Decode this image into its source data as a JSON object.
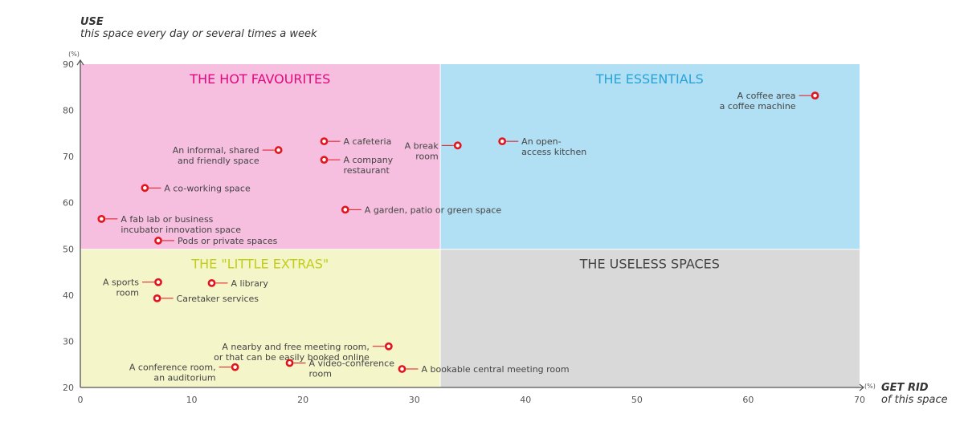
{
  "chart_data": {
    "type": "scatter",
    "ylabel_title": "USE",
    "ylabel_sub": "this space every day or several times a week",
    "xlabel_title": "GET RID",
    "xlabel_sub": "of this space",
    "x_unit": "(%)",
    "y_unit": "(%)",
    "xlim": [
      0,
      70
    ],
    "ylim": [
      20,
      90
    ],
    "x_ticks": [
      0,
      10,
      20,
      30,
      40,
      50,
      60,
      70
    ],
    "y_ticks": [
      20,
      30,
      40,
      50,
      60,
      70,
      80,
      90
    ],
    "grid": false,
    "quadrants": [
      {
        "title": "THE HOT FAVOURITES",
        "x": [
          0,
          32.3
        ],
        "y": [
          50,
          90
        ],
        "bg": "#f6bfdf",
        "color": "#e3087e"
      },
      {
        "title": "THE ESSENTIALS",
        "x": [
          32.3,
          70
        ],
        "y": [
          50,
          90
        ],
        "bg": "#b1dff3",
        "color": "#29a3d8"
      },
      {
        "title": "THE \"LITTLE EXTRAS\"",
        "x": [
          0,
          32.3
        ],
        "y": [
          20,
          50
        ],
        "bg": "#f4f5c9",
        "color": "#c2cd19"
      },
      {
        "title": "THE USELESS SPACES",
        "x": [
          32.3,
          70
        ],
        "y": [
          20,
          50
        ],
        "bg": "#d9d9d9",
        "color": "#444444"
      }
    ],
    "point_color": "#e3141b",
    "points": [
      {
        "x": 66.0,
        "y": 83.2,
        "label": [
          "A coffee area",
          "a coffee machine"
        ],
        "side": "left"
      },
      {
        "x": 37.9,
        "y": 73.3,
        "label": [
          "An open-",
          "access kitchen"
        ],
        "side": "right"
      },
      {
        "x": 33.9,
        "y": 72.4,
        "label": [
          "A break",
          "room"
        ],
        "side": "left"
      },
      {
        "x": 21.9,
        "y": 73.3,
        "label": [
          "A cafeteria"
        ],
        "side": "right"
      },
      {
        "x": 21.9,
        "y": 69.3,
        "label": [
          "A company",
          "restaurant"
        ],
        "side": "right"
      },
      {
        "x": 17.8,
        "y": 71.4,
        "label": [
          "An informal, shared",
          "and friendly space"
        ],
        "side": "left"
      },
      {
        "x": 5.8,
        "y": 63.2,
        "label": [
          "A co-working space"
        ],
        "side": "right"
      },
      {
        "x": 23.8,
        "y": 58.5,
        "label": [
          "A garden, patio or green space"
        ],
        "side": "right"
      },
      {
        "x": 1.9,
        "y": 56.5,
        "label": [
          "A fab lab or business",
          "incubator innovation space"
        ],
        "side": "right"
      },
      {
        "x": 7.0,
        "y": 51.8,
        "label": [
          "Pods or private spaces"
        ],
        "side": "right"
      },
      {
        "x": 7.0,
        "y": 42.8,
        "label": [
          "A sports",
          "room"
        ],
        "side": "left"
      },
      {
        "x": 11.8,
        "y": 42.6,
        "label": [
          "A library"
        ],
        "side": "right"
      },
      {
        "x": 6.9,
        "y": 39.3,
        "label": [
          "Caretaker services"
        ],
        "side": "right"
      },
      {
        "x": 27.7,
        "y": 28.9,
        "label": [
          "A nearby and free meeting room,",
          "or that can be easily booked online"
        ],
        "side": "left"
      },
      {
        "x": 13.9,
        "y": 24.4,
        "label": [
          "A conference room,",
          "an auditorium"
        ],
        "side": "left"
      },
      {
        "x": 18.8,
        "y": 25.3,
        "label": [
          "A video-conference",
          "room"
        ],
        "side": "right"
      },
      {
        "x": 28.9,
        "y": 24.0,
        "label": [
          "A bookable central meeting room"
        ],
        "side": "right"
      }
    ]
  }
}
